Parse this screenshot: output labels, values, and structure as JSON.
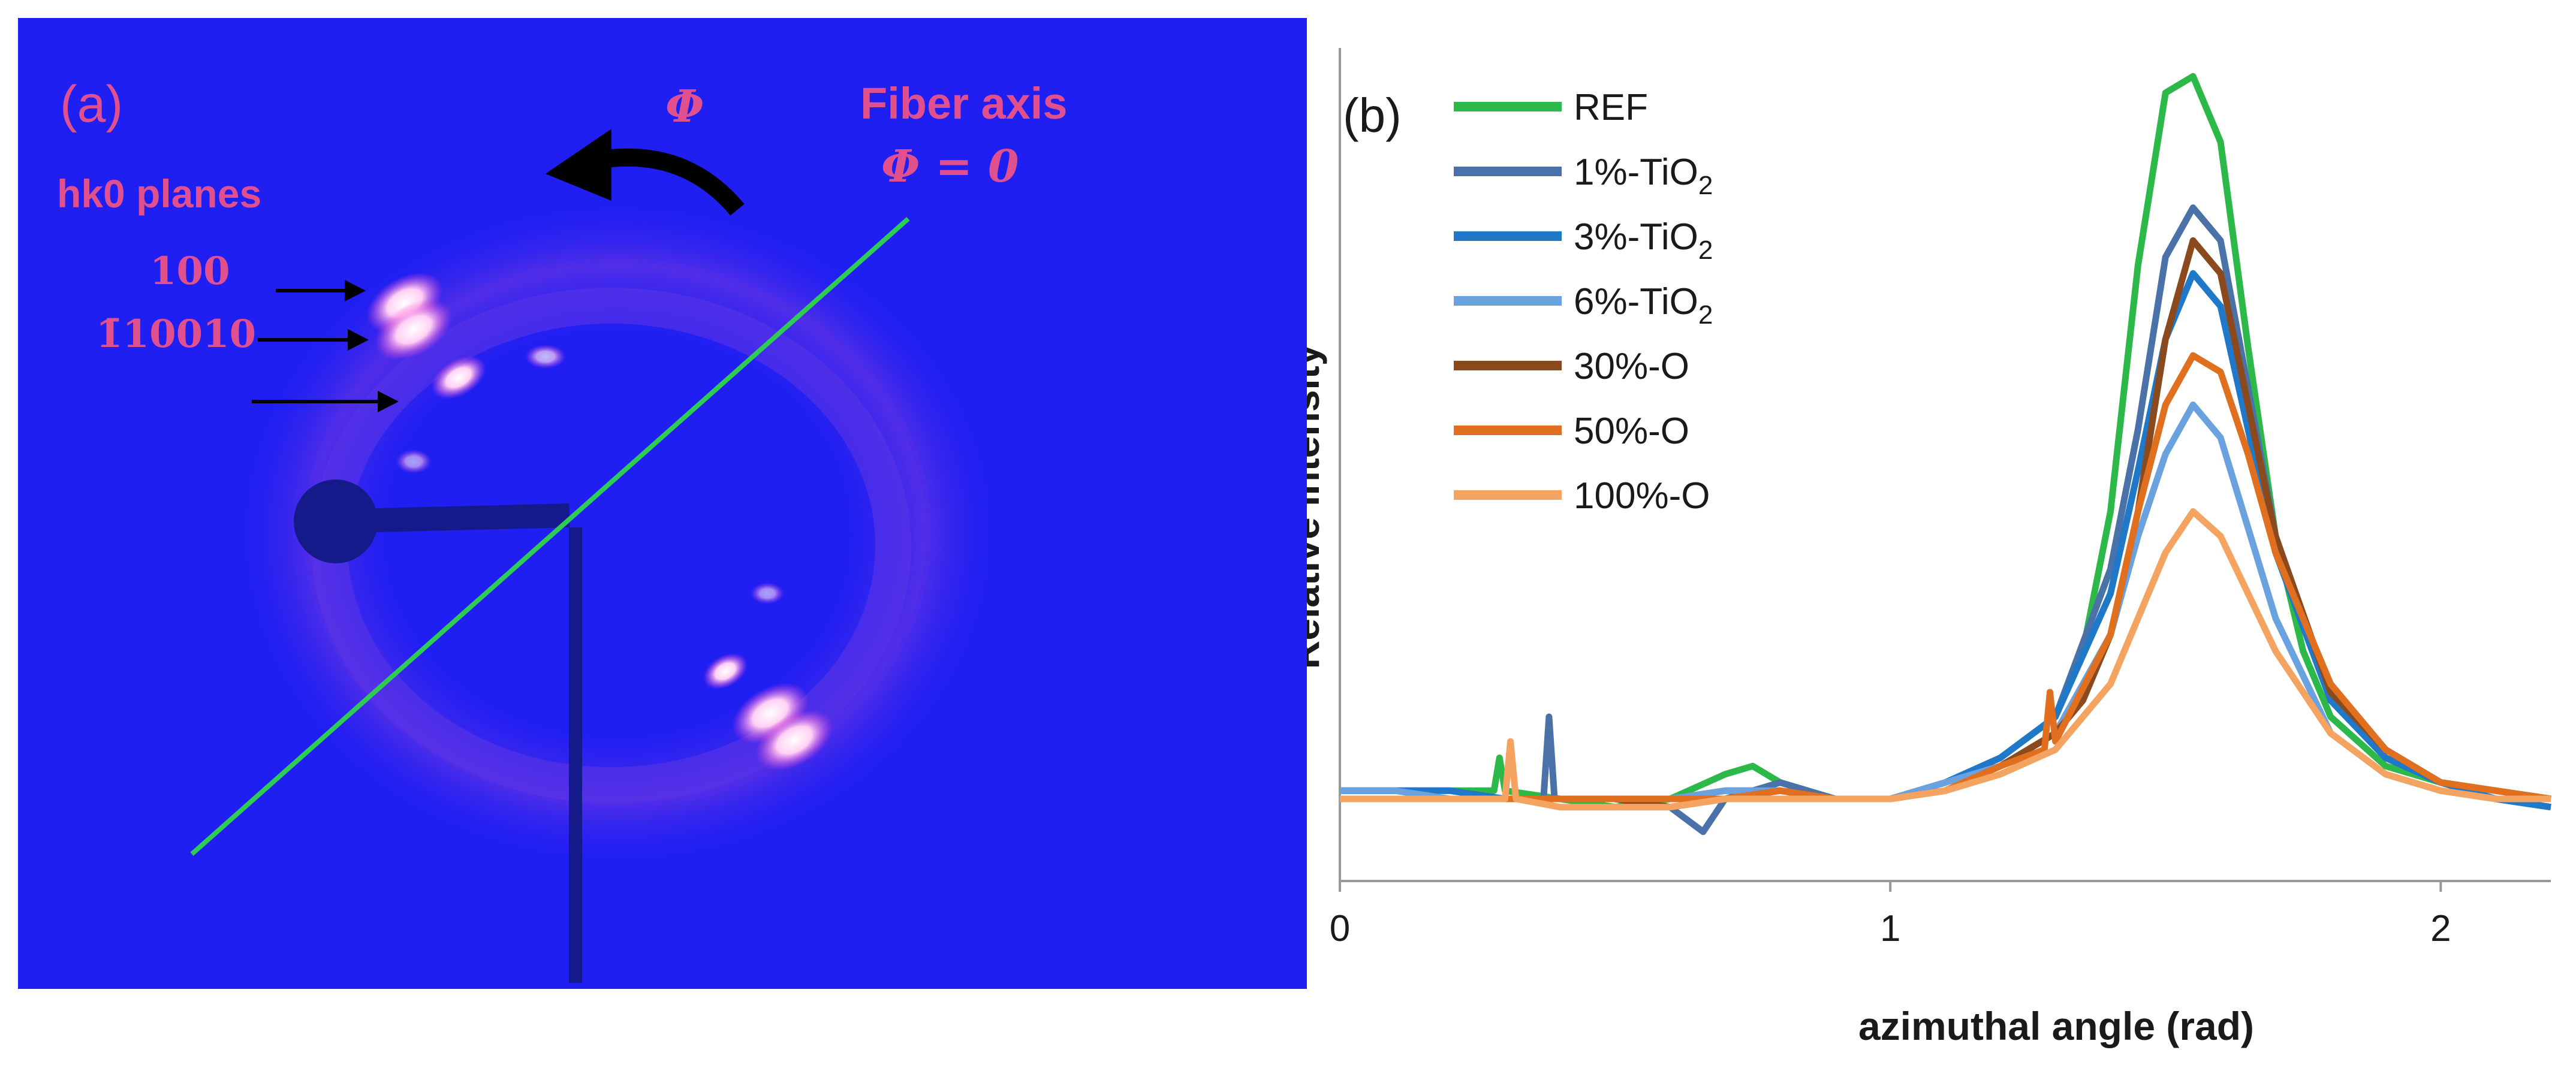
{
  "panel_a": {
    "label": "(a)",
    "phi_symbol": "Φ",
    "fiber_axis_label": "Fiber axis",
    "phi_equation": "Φ = 0",
    "planes_label": "hk0 planes",
    "plane_100": "100",
    "plane_010": "1̄10010",
    "colors": {
      "background": "#1f1ff2",
      "annotation": "#e0508e",
      "fiber_line": "#2ecc55",
      "arrow": "#000000",
      "reflection": "#ff6ad5"
    }
  },
  "chart_data": {
    "type": "line",
    "panel_label": "(b)",
    "title": "",
    "xlabel": "azimuthal angle (rad)",
    "ylabel": "Relative intensity",
    "xlim": [
      0,
      2.2
    ],
    "ylim": [
      0,
      1
    ],
    "x_ticks": [
      0,
      1,
      2
    ],
    "x_tick_labels": [
      "0",
      "1",
      "2"
    ],
    "legend_position": "top-left",
    "series": [
      {
        "name": "REF",
        "name_main": "REF",
        "name_sub": "",
        "color": "#2db84a",
        "x": [
          0,
          0.1,
          0.2,
          0.28,
          0.29,
          0.3,
          0.4,
          0.5,
          0.6,
          0.7,
          0.75,
          0.8,
          0.9,
          1.0,
          1.1,
          1.2,
          1.3,
          1.35,
          1.4,
          1.45,
          1.5,
          1.55,
          1.6,
          1.65,
          1.7,
          1.75,
          1.8,
          1.9,
          2.0,
          2.1,
          2.2
        ],
        "y": [
          0.11,
          0.11,
          0.11,
          0.11,
          0.15,
          0.11,
          0.1,
          0.09,
          0.1,
          0.13,
          0.14,
          0.12,
          0.1,
          0.1,
          0.12,
          0.15,
          0.2,
          0.28,
          0.45,
          0.75,
          0.96,
          0.98,
          0.9,
          0.65,
          0.42,
          0.28,
          0.2,
          0.14,
          0.12,
          0.11,
          0.1
        ]
      },
      {
        "name": "1%-TiO2",
        "name_main": "1%-TiO",
        "name_sub": "2",
        "color": "#4a72a8",
        "x": [
          0,
          0.1,
          0.2,
          0.3,
          0.37,
          0.38,
          0.39,
          0.5,
          0.6,
          0.66,
          0.7,
          0.8,
          0.9,
          1.0,
          1.1,
          1.2,
          1.3,
          1.4,
          1.45,
          1.5,
          1.55,
          1.6,
          1.65,
          1.7,
          1.8,
          1.9,
          2.0,
          2.1,
          2.2
        ],
        "y": [
          0.1,
          0.1,
          0.1,
          0.1,
          0.1,
          0.2,
          0.1,
          0.1,
          0.09,
          0.06,
          0.1,
          0.12,
          0.1,
          0.1,
          0.12,
          0.15,
          0.2,
          0.38,
          0.55,
          0.76,
          0.82,
          0.78,
          0.6,
          0.42,
          0.22,
          0.15,
          0.12,
          0.1,
          0.09
        ]
      },
      {
        "name": "3%-TiO2",
        "name_main": "3%-TiO",
        "name_sub": "2",
        "color": "#1f78c8",
        "x": [
          0,
          0.1,
          0.2,
          0.3,
          0.4,
          0.5,
          0.6,
          0.7,
          0.8,
          0.9,
          1.0,
          1.1,
          1.2,
          1.3,
          1.4,
          1.45,
          1.5,
          1.55,
          1.6,
          1.65,
          1.7,
          1.8,
          1.9,
          2.0,
          2.1,
          2.2
        ],
        "y": [
          0.11,
          0.11,
          0.11,
          0.1,
          0.1,
          0.1,
          0.1,
          0.11,
          0.11,
          0.1,
          0.1,
          0.12,
          0.15,
          0.2,
          0.35,
          0.5,
          0.66,
          0.74,
          0.7,
          0.55,
          0.4,
          0.22,
          0.15,
          0.12,
          0.1,
          0.09
        ]
      },
      {
        "name": "6%-TiO2",
        "name_main": "6%-TiO",
        "name_sub": "2",
        "color": "#6aa2e0",
        "x": [
          0,
          0.1,
          0.2,
          0.3,
          0.4,
          0.5,
          0.6,
          0.7,
          0.8,
          0.9,
          1.0,
          1.1,
          1.2,
          1.3,
          1.4,
          1.45,
          1.5,
          1.55,
          1.6,
          1.65,
          1.7,
          1.8,
          1.9,
          2.0,
          2.1,
          2.2
        ],
        "y": [
          0.11,
          0.11,
          0.1,
          0.1,
          0.1,
          0.1,
          0.1,
          0.11,
          0.11,
          0.1,
          0.1,
          0.12,
          0.14,
          0.18,
          0.3,
          0.42,
          0.52,
          0.58,
          0.54,
          0.43,
          0.32,
          0.18,
          0.13,
          0.11,
          0.1,
          0.1
        ]
      },
      {
        "name": "30%-O",
        "name_main": "30%-O",
        "name_sub": "",
        "color": "#8b4a1e",
        "x": [
          0,
          0.1,
          0.2,
          0.3,
          0.4,
          0.5,
          0.6,
          0.7,
          0.8,
          0.9,
          1.0,
          1.1,
          1.2,
          1.3,
          1.35,
          1.4,
          1.45,
          1.5,
          1.55,
          1.6,
          1.65,
          1.7,
          1.8,
          1.9,
          2.0,
          2.1,
          2.2
        ],
        "y": [
          0.1,
          0.1,
          0.1,
          0.1,
          0.1,
          0.1,
          0.09,
          0.1,
          0.11,
          0.1,
          0.1,
          0.11,
          0.14,
          0.18,
          0.22,
          0.3,
          0.45,
          0.66,
          0.78,
          0.74,
          0.58,
          0.42,
          0.23,
          0.16,
          0.12,
          0.11,
          0.1
        ]
      },
      {
        "name": "50%-O",
        "name_main": "50%-O",
        "name_sub": "",
        "color": "#e07020",
        "x": [
          0,
          0.1,
          0.2,
          0.3,
          0.4,
          0.5,
          0.6,
          0.7,
          0.8,
          0.9,
          1.0,
          1.1,
          1.2,
          1.28,
          1.29,
          1.3,
          1.4,
          1.45,
          1.5,
          1.55,
          1.6,
          1.65,
          1.7,
          1.8,
          1.9,
          2.0,
          2.1,
          2.2
        ],
        "y": [
          0.1,
          0.1,
          0.1,
          0.1,
          0.1,
          0.1,
          0.1,
          0.1,
          0.11,
          0.1,
          0.1,
          0.11,
          0.14,
          0.16,
          0.23,
          0.17,
          0.3,
          0.45,
          0.58,
          0.64,
          0.62,
          0.52,
          0.4,
          0.24,
          0.16,
          0.12,
          0.11,
          0.1
        ]
      },
      {
        "name": "100%-O",
        "name_main": "100%-O",
        "name_sub": "",
        "color": "#f4a460",
        "x": [
          0,
          0.1,
          0.2,
          0.3,
          0.31,
          0.32,
          0.4,
          0.5,
          0.6,
          0.7,
          0.8,
          0.9,
          1.0,
          1.1,
          1.2,
          1.3,
          1.4,
          1.45,
          1.5,
          1.55,
          1.6,
          1.65,
          1.7,
          1.8,
          1.9,
          2.0,
          2.1,
          2.2
        ],
        "y": [
          0.1,
          0.1,
          0.1,
          0.1,
          0.17,
          0.1,
          0.09,
          0.09,
          0.09,
          0.1,
          0.1,
          0.1,
          0.1,
          0.11,
          0.13,
          0.16,
          0.24,
          0.32,
          0.4,
          0.45,
          0.42,
          0.35,
          0.28,
          0.18,
          0.13,
          0.11,
          0.1,
          0.1
        ]
      }
    ]
  }
}
